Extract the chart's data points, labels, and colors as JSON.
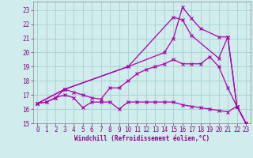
{
  "xlabel": "Windchill (Refroidissement éolien,°C)",
  "background_color": "#d0ecec",
  "grid_color": "#aad4d4",
  "line_color": "#aa00aa",
  "spine_color": "#888888",
  "xlim": [
    -0.5,
    23.5
  ],
  "ylim": [
    15.0,
    23.6
  ],
  "yticks": [
    15,
    16,
    17,
    18,
    19,
    20,
    21,
    22,
    23
  ],
  "xticks": [
    0,
    1,
    2,
    3,
    4,
    5,
    6,
    7,
    8,
    9,
    10,
    11,
    12,
    13,
    14,
    15,
    16,
    17,
    18,
    19,
    20,
    21,
    22,
    23
  ],
  "line1_x": [
    0,
    1,
    2,
    3,
    4,
    5,
    6,
    7,
    8,
    9,
    10,
    11,
    12,
    13,
    14,
    15,
    16,
    17,
    18,
    19,
    20,
    21,
    22,
    23
  ],
  "line1_y": [
    16.4,
    16.5,
    16.8,
    17.0,
    16.8,
    16.1,
    16.5,
    16.5,
    16.5,
    16.0,
    16.5,
    16.5,
    16.5,
    16.5,
    16.5,
    16.5,
    16.3,
    16.2,
    16.1,
    16.0,
    15.9,
    15.8,
    16.2,
    15.0
  ],
  "line2_x": [
    0,
    1,
    2,
    3,
    4,
    5,
    6,
    7,
    8,
    9,
    10,
    11,
    12,
    13,
    14,
    15,
    16,
    17,
    18,
    19,
    20,
    21,
    22,
    23
  ],
  "line2_y": [
    16.4,
    16.5,
    16.8,
    17.4,
    17.2,
    17.0,
    16.8,
    16.7,
    17.5,
    17.5,
    18.0,
    18.5,
    18.8,
    19.0,
    19.2,
    19.5,
    19.2,
    19.2,
    19.2,
    19.7,
    19.0,
    17.5,
    16.2,
    15.0
  ],
  "line3_x": [
    0,
    3,
    10,
    15,
    16,
    17,
    20,
    21,
    22,
    23
  ],
  "line3_y": [
    16.4,
    17.4,
    19.0,
    22.5,
    22.3,
    21.2,
    19.6,
    21.1,
    16.2,
    15.0
  ],
  "line4_x": [
    0,
    3,
    10,
    14,
    15,
    16,
    17,
    18,
    20,
    21,
    22,
    23
  ],
  "line4_y": [
    16.4,
    17.4,
    19.0,
    20.0,
    21.0,
    23.2,
    22.4,
    21.7,
    21.1,
    21.1,
    16.2,
    15.0
  ],
  "xlabel_color": "#880088",
  "tick_color": "#880088",
  "label_fontsize": 5.5,
  "tick_fontsize": 5.5,
  "line_width": 0.9,
  "marker_size": 2.5,
  "marker_edge_width": 0.8
}
